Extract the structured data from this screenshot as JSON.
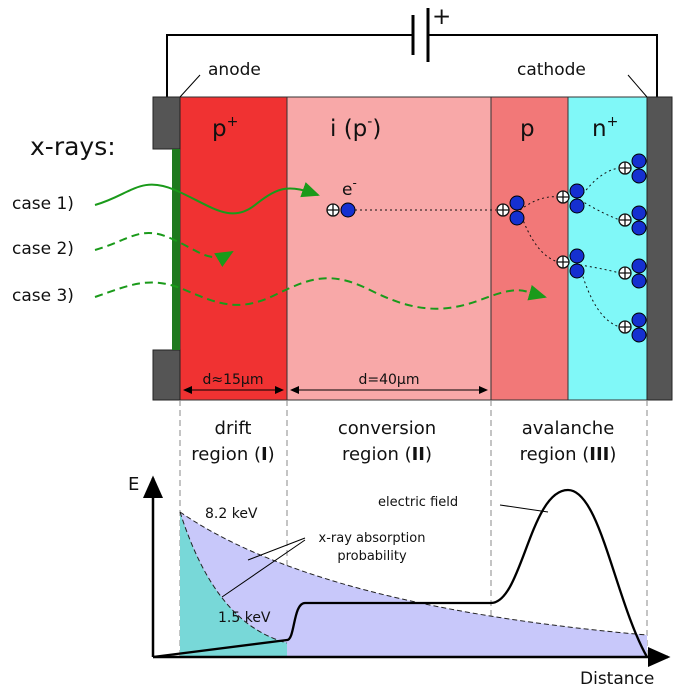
{
  "battery": {
    "plus": "+"
  },
  "electrodes": {
    "anode": "anode",
    "cathode": "cathode"
  },
  "xrays_label": "x-rays:",
  "layers": [
    {
      "base": "p",
      "sup": "+"
    },
    {
      "base": "i (p",
      "sup": "-",
      "suffix": ")"
    },
    {
      "base": "p"
    },
    {
      "base": "n",
      "sup": "+"
    }
  ],
  "electron": {
    "base": "e",
    "sup": "-"
  },
  "cases": [
    "case 1)",
    "case 2)",
    "case 3)"
  ],
  "dimensions": [
    "d≈15μm",
    "d=40μm"
  ],
  "regions": [
    {
      "name": "drift",
      "prefix": "region (",
      "numeral": "I",
      "suffix": ")"
    },
    {
      "name": "conversion",
      "prefix": "region (",
      "numeral": "II",
      "suffix": ")"
    },
    {
      "name": "avalanche",
      "prefix": "region (",
      "numeral": "III",
      "suffix": ")"
    }
  ],
  "plot": {
    "y_axis": "E",
    "x_axis": "Distance",
    "high_energy": "8.2 keV",
    "low_energy": "1.5 keV",
    "absorption": [
      "x-ray absorption",
      "probability"
    ],
    "field": "electric field"
  }
}
